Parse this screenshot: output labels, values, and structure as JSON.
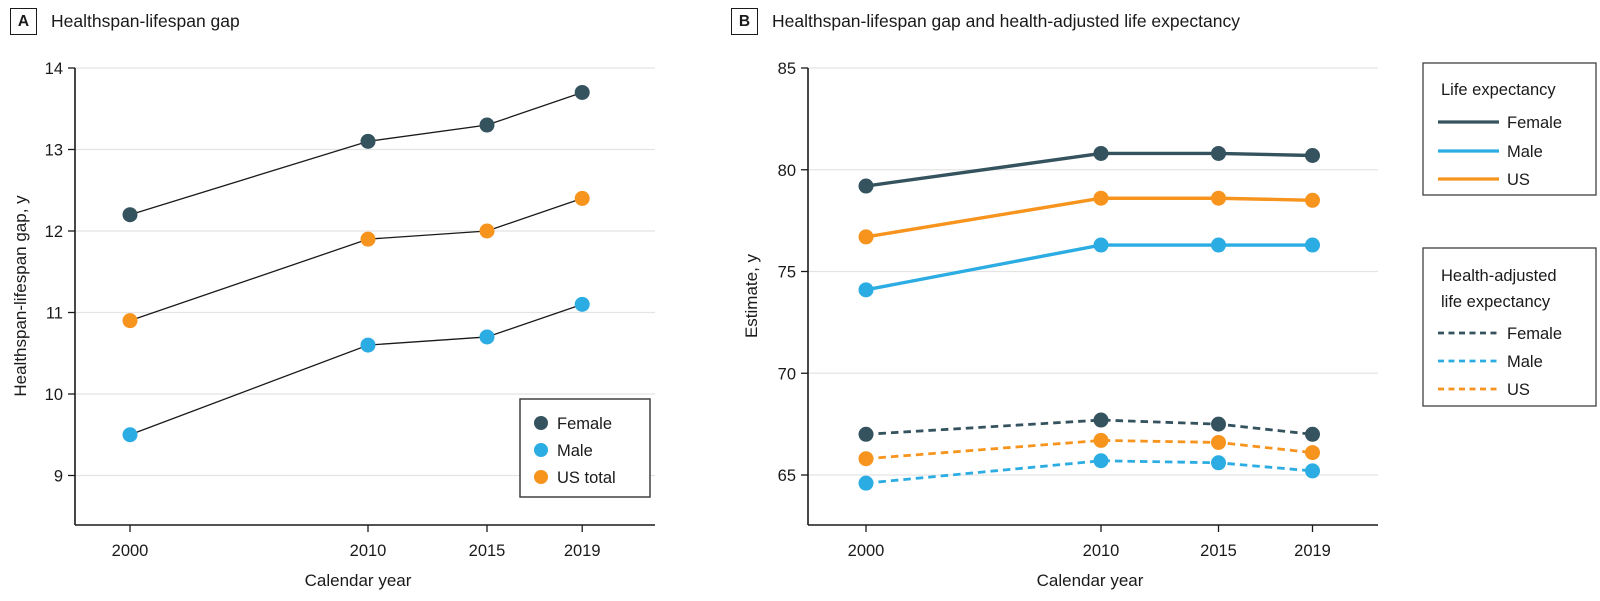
{
  "figure": {
    "panels": [
      {
        "label": "A",
        "title": "Healthspan-lifespan gap"
      },
      {
        "label": "B",
        "title": "Healthspan-lifespan gap and health-adjusted life expectancy"
      }
    ]
  },
  "colors": {
    "series": {
      "female": "#35535E",
      "male": "#2BACE2",
      "us": "#F7941E"
    },
    "grid": "#E4E4E4",
    "axis": "#1A1A1A",
    "text": "#1A1A1A",
    "connector": "#1A1A1A",
    "legend_border": "#404040",
    "background": "#FFFFFF"
  },
  "chart_data": [
    {
      "type": "line",
      "panel": "A",
      "title": "Healthspan-lifespan gap",
      "x": [
        2000,
        2010,
        2015,
        2019
      ],
      "x_tick_labels": [
        "2000",
        "2010",
        "2015",
        "2019"
      ],
      "xlabel": "Calendar year",
      "ylabel": "Healthspan-lifespan gap, y",
      "ylim": [
        9,
        14
      ],
      "y_ticks": [
        9,
        10,
        11,
        12,
        13,
        14
      ],
      "y_tick_labels": [
        "9",
        "10",
        "11",
        "12",
        "13",
        "14"
      ],
      "grid": true,
      "legend_position": "bottom-right",
      "series": [
        {
          "name": "Female",
          "color": "female",
          "line_style": "connector",
          "marker": "circle",
          "values": [
            12.2,
            13.1,
            13.3,
            13.7
          ]
        },
        {
          "name": "Male",
          "color": "male",
          "line_style": "connector",
          "marker": "circle",
          "values": [
            9.5,
            10.6,
            10.7,
            11.1
          ]
        },
        {
          "name": "US total",
          "color": "us",
          "line_style": "connector",
          "marker": "circle",
          "values": [
            10.9,
            11.9,
            12.0,
            12.4
          ]
        }
      ],
      "legend": {
        "items": [
          {
            "label": "Female",
            "color": "female"
          },
          {
            "label": "Male",
            "color": "male"
          },
          {
            "label": "US total",
            "color": "us"
          }
        ]
      }
    },
    {
      "type": "line",
      "panel": "B",
      "title": "Healthspan-lifespan gap and health-adjusted life expectancy",
      "x": [
        2000,
        2010,
        2015,
        2019
      ],
      "x_tick_labels": [
        "2000",
        "2010",
        "2015",
        "2019"
      ],
      "xlabel": "Calendar year",
      "ylabel": "Estimate, y",
      "ylim": [
        65,
        85
      ],
      "y_ticks": [
        65,
        70,
        75,
        80,
        85
      ],
      "y_tick_labels": [
        "65",
        "70",
        "75",
        "80",
        "85"
      ],
      "grid": true,
      "legend_position": "right-outside",
      "series": [
        {
          "group": "Life expectancy",
          "name": "Female",
          "color": "female",
          "line_style": "solid",
          "marker": "circle",
          "values": [
            79.2,
            80.8,
            80.8,
            80.7
          ]
        },
        {
          "group": "Life expectancy",
          "name": "Male",
          "color": "male",
          "line_style": "solid",
          "marker": "circle",
          "values": [
            74.1,
            76.3,
            76.3,
            76.3
          ]
        },
        {
          "group": "Life expectancy",
          "name": "US",
          "color": "us",
          "line_style": "solid",
          "marker": "circle",
          "values": [
            76.7,
            78.6,
            78.6,
            78.5
          ]
        },
        {
          "group": "Health-adjusted life expectancy",
          "name": "Female",
          "color": "female",
          "line_style": "dashed",
          "marker": "circle",
          "values": [
            67.0,
            67.7,
            67.5,
            67.0
          ]
        },
        {
          "group": "Health-adjusted life expectancy",
          "name": "Male",
          "color": "male",
          "line_style": "dashed",
          "marker": "circle",
          "values": [
            64.6,
            65.7,
            65.6,
            65.2
          ]
        },
        {
          "group": "Health-adjusted life expectancy",
          "name": "US",
          "color": "us",
          "line_style": "dashed",
          "marker": "circle",
          "values": [
            65.8,
            66.7,
            66.6,
            66.1
          ]
        }
      ],
      "legends": [
        {
          "title_lines": [
            "Life expectancy"
          ],
          "style": "solid",
          "items": [
            {
              "label": "Female",
              "color": "female"
            },
            {
              "label": "Male",
              "color": "male"
            },
            {
              "label": "US",
              "color": "us"
            }
          ]
        },
        {
          "title_lines": [
            "Health-adjusted",
            "life expectancy"
          ],
          "style": "dashed",
          "items": [
            {
              "label": "Female",
              "color": "female"
            },
            {
              "label": "Male",
              "color": "male"
            },
            {
              "label": "US",
              "color": "us"
            }
          ]
        }
      ]
    }
  ]
}
